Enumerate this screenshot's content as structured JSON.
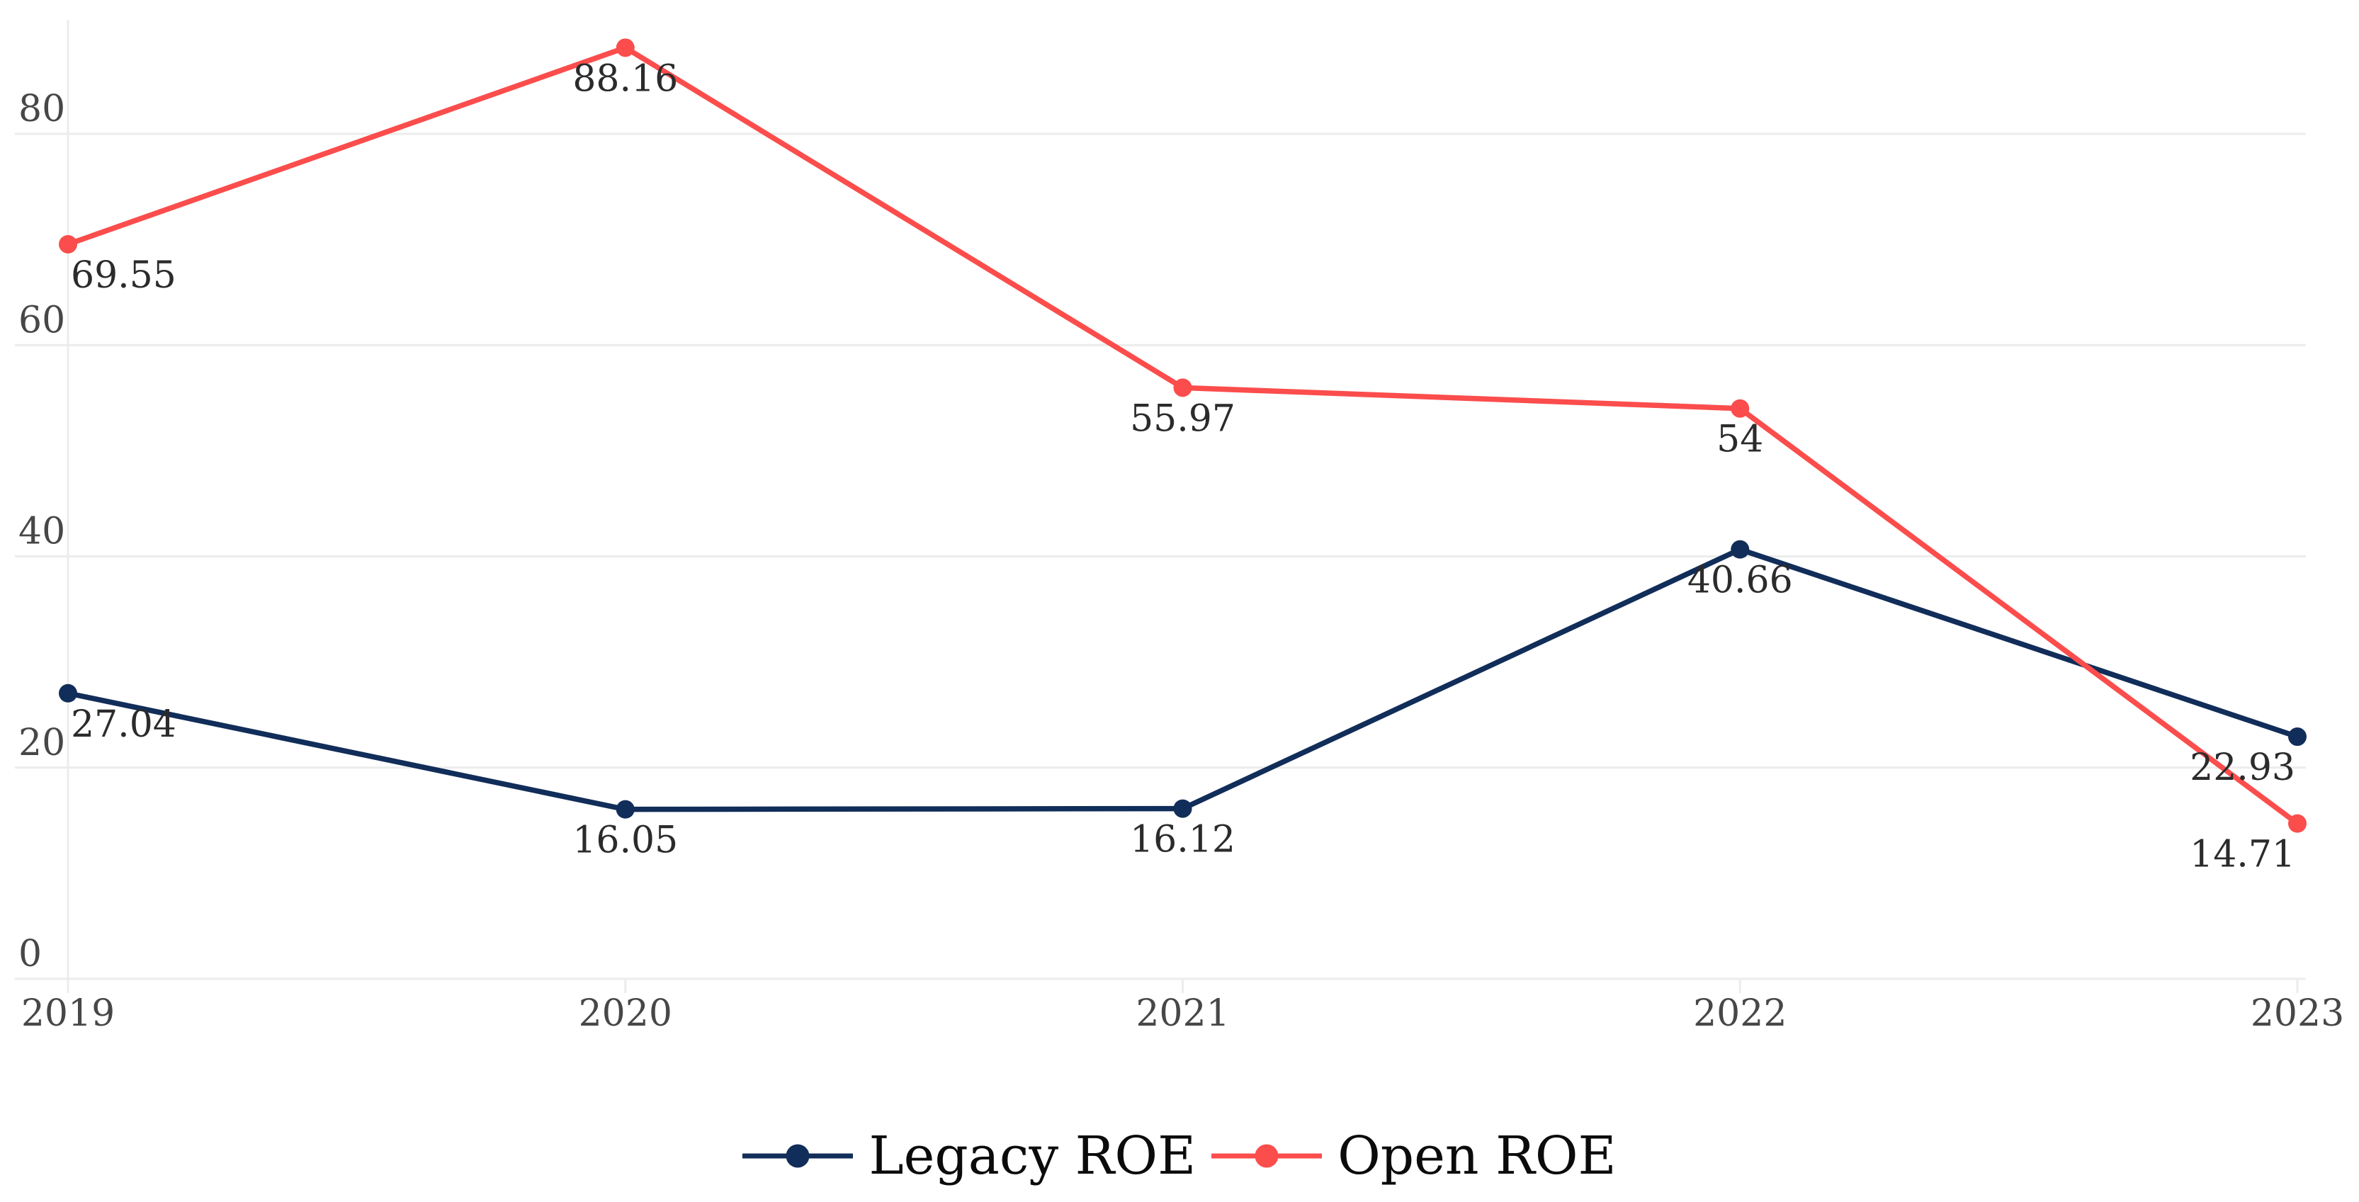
{
  "chart_data": {
    "type": "line",
    "title": "",
    "xlabel": "",
    "ylabel": "",
    "categories": [
      "2019",
      "2020",
      "2021",
      "2022",
      "2023"
    ],
    "series": [
      {
        "name": "Legacy ROE",
        "color": "#112d59",
        "values": [
          27.04,
          16.05,
          16.12,
          40.66,
          22.93
        ],
        "point_labels": [
          "27.04",
          "16.05",
          "16.12",
          "40.66",
          "22.93"
        ]
      },
      {
        "name": "Open ROE",
        "color": "#fb4d4c",
        "values": [
          69.55,
          88.16,
          55.97,
          54,
          14.71
        ],
        "point_labels": [
          "69.55",
          "88.16",
          "55.97",
          "54",
          "14.71"
        ]
      }
    ],
    "y_ticks": [
      0,
      20,
      40,
      60,
      80
    ],
    "ylim": [
      0,
      92.7
    ],
    "grid": "horizontal-only",
    "legend_position": "bottom-center"
  },
  "legend": {
    "items": [
      "Legacy ROE",
      "Open ROE"
    ]
  },
  "styles": {
    "background": "#ffffff",
    "gridline_color": "#ececec",
    "axis_tick_label_color": "#474747",
    "value_label_color": "#2b2b2b",
    "legend_text_color": "#0b0b0b",
    "series_colors": [
      "#112d59",
      "#fb4d4c"
    ]
  }
}
